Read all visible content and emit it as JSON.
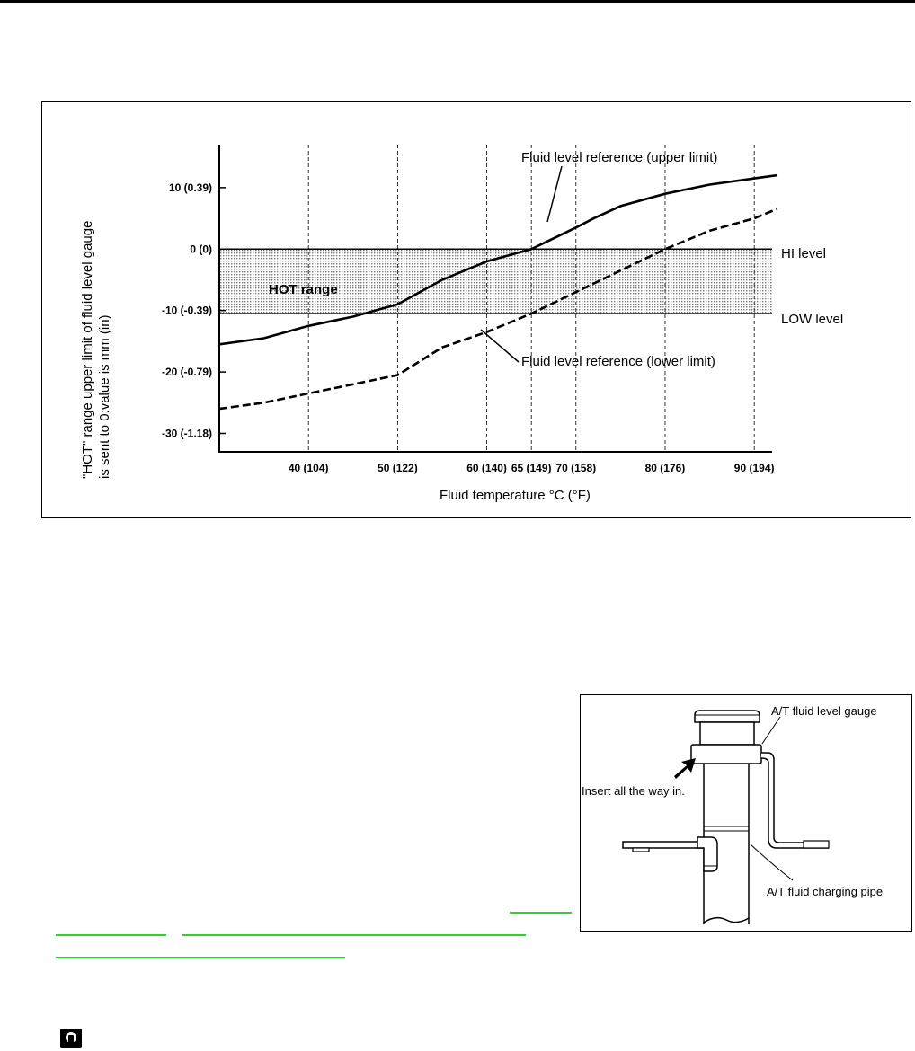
{
  "chart_data": {
    "type": "line",
    "title": "",
    "ylabel": "\"HOT\" range upper limit of fluid level gauge is sent to 0:value is mm (in)",
    "ylabel_lines": [
      "\"HOT\" range upper limit of fluid level gauge",
      "is sent to 0:value is mm (in)"
    ],
    "xlabel": "Fluid temperature °C (°F)",
    "xlim": [
      30,
      92
    ],
    "ylim": [
      -33,
      17
    ],
    "x_ticks": [
      40,
      50,
      60,
      65,
      70,
      80,
      90
    ],
    "x_tick_labels": [
      "40 (104)",
      "50 (122)",
      "60 (140)",
      "65 (149)",
      "70 (158)",
      "80 (176)",
      "90 (194)"
    ],
    "y_ticks": [
      10,
      0,
      -10,
      -20,
      -30
    ],
    "y_tick_labels": [
      "10 (0.39)",
      "0 (0)",
      "-10 (-0.39)",
      "-20 (-0.79)",
      "-30 (-1.18)"
    ],
    "grid_x": true,
    "band": {
      "label": "HOT range",
      "from": -10.5,
      "to": 0
    },
    "reference_lines": [
      {
        "value": 0,
        "label": "HI level"
      },
      {
        "value": -10.5,
        "label": "LOW level"
      }
    ],
    "series": [
      {
        "name": "Fluid level reference (upper limit)",
        "style": "solid",
        "x": [
          30,
          35,
          40,
          45,
          50,
          55,
          60,
          65,
          70,
          72,
          75,
          80,
          85,
          90,
          92.5
        ],
        "y": [
          -15.5,
          -14.5,
          -12.5,
          -11,
          -9,
          -5,
          -2,
          0,
          3.5,
          5,
          7,
          9,
          10.5,
          11.5,
          12
        ]
      },
      {
        "name": "Fluid level reference (lower limit)",
        "style": "dashed",
        "x": [
          30,
          35,
          40,
          45,
          50,
          55,
          60,
          65,
          70,
          75,
          80,
          85,
          90,
          92.5
        ],
        "y": [
          -26,
          -25,
          -23.5,
          -22,
          -20.5,
          -16,
          -13.5,
          -10.5,
          -7,
          -3.5,
          0,
          3,
          5,
          6.5
        ]
      }
    ],
    "annotations": [
      "Fluid level reference (upper limit)",
      "Fluid level reference (lower limit)"
    ]
  },
  "figure": {
    "labels": {
      "gauge": "A/T fluid level gauge",
      "insert": "Insert all the way in.",
      "pipe": "A/T fluid charging pipe"
    }
  },
  "colors": {
    "link": "#2bd32b",
    "band_dots": "#777777"
  }
}
